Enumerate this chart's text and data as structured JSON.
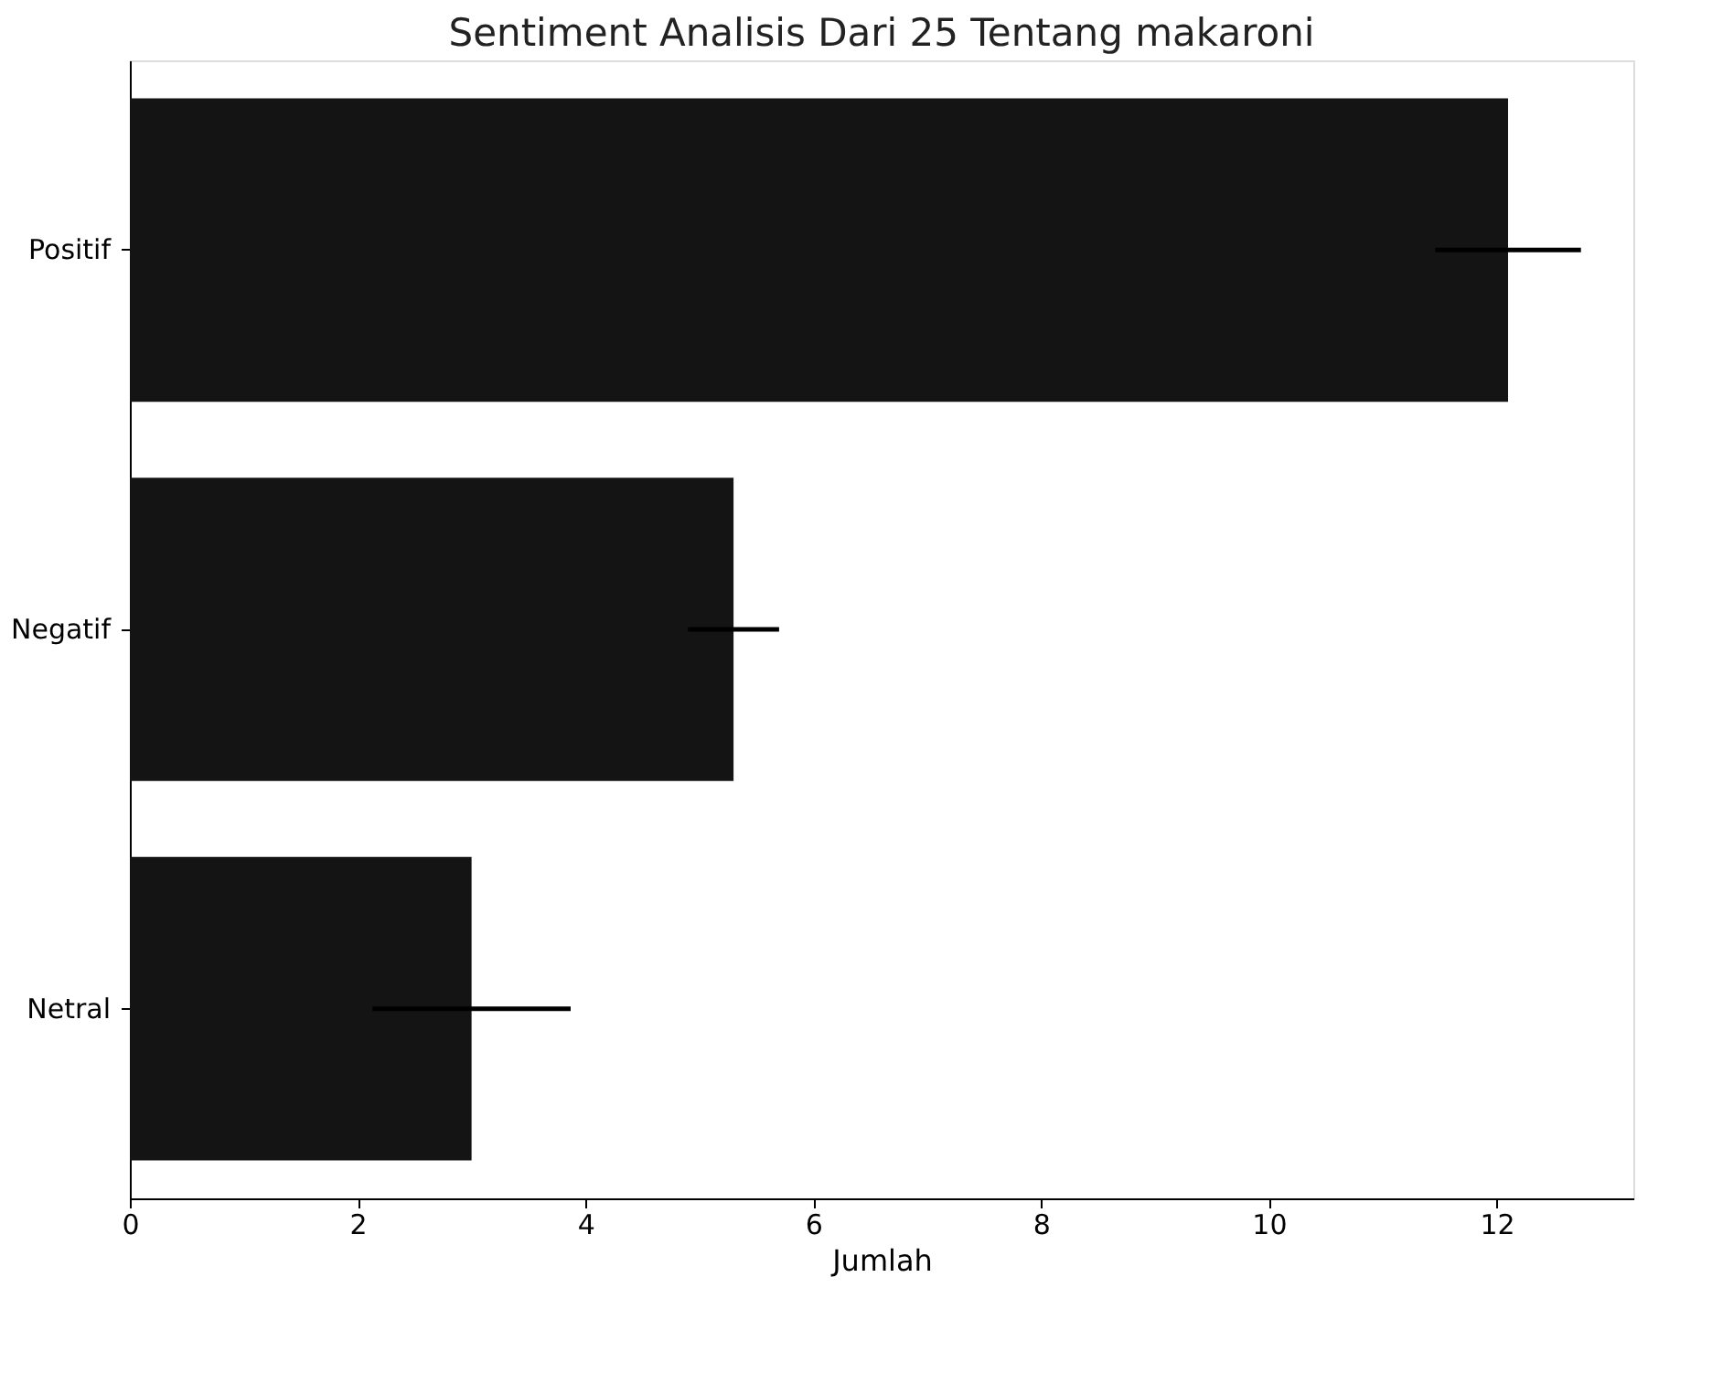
{
  "chart_data": {
    "type": "bar",
    "orientation": "horizontal",
    "title": "Sentiment Analisis Dari 25 Tentang makaroni",
    "xlabel": "Jumlah",
    "categories": [
      "Positif",
      "Negatif",
      "Netral"
    ],
    "values": [
      12.1,
      5.3,
      3.0
    ],
    "errors": [
      0.64,
      0.4,
      0.87
    ],
    "color": "#141414",
    "xlim": [
      0,
      13.2
    ],
    "xticks": [
      0,
      2,
      4,
      6,
      8,
      10,
      12
    ],
    "grid": false
  }
}
